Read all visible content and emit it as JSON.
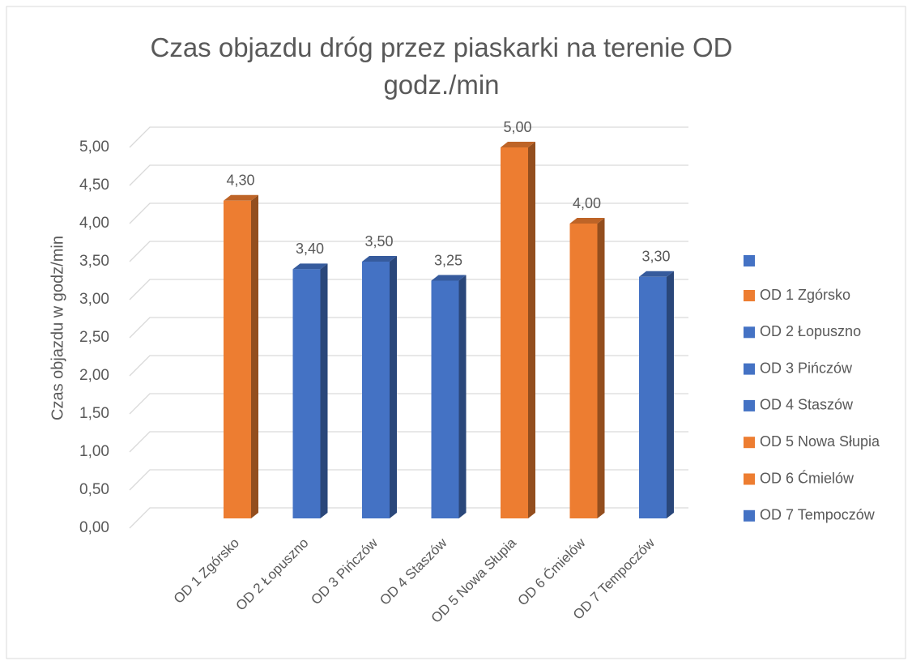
{
  "chart_data": {
    "type": "bar3d",
    "title": "Czas objazdu dróg przez piaskarki na terenie OD godz./min",
    "y_label": "Czas objazdu w godz/min",
    "categories": [
      "OD 1 Zgórsko",
      "OD 2 Łopuszno",
      "OD 3 Pińczów",
      "OD 4 Staszów",
      "OD 5 Nowa Słupia",
      "OD 6 Ćmielów",
      "OD 7 Tempoczów"
    ],
    "values": [
      4.3,
      3.4,
      3.5,
      3.25,
      5.0,
      4.0,
      3.3
    ],
    "value_labels": [
      "4,30",
      "3,40",
      "3,50",
      "3,25",
      "5,00",
      "4,00",
      "3,30"
    ],
    "colors": [
      "#ed7d31",
      "#4472c4",
      "#4472c4",
      "#4472c4",
      "#ed7d31",
      "#ed7d31",
      "#4472c4"
    ],
    "ylim": [
      0,
      5.25
    ],
    "yticks": [
      {
        "value": 0,
        "label": "0,00"
      },
      {
        "value": 0.5,
        "label": "0,50"
      },
      {
        "value": 1,
        "label": "1,00"
      },
      {
        "value": 1.5,
        "label": "1,50"
      },
      {
        "value": 2,
        "label": "2,00"
      },
      {
        "value": 2.5,
        "label": "2,50"
      },
      {
        "value": 3,
        "label": "3,00"
      },
      {
        "value": 3.5,
        "label": "3,50"
      },
      {
        "value": 4,
        "label": "4,00"
      },
      {
        "value": 4.5,
        "label": "4,50"
      },
      {
        "value": 5,
        "label": "5,00"
      }
    ],
    "grid": true,
    "legend": "right"
  }
}
